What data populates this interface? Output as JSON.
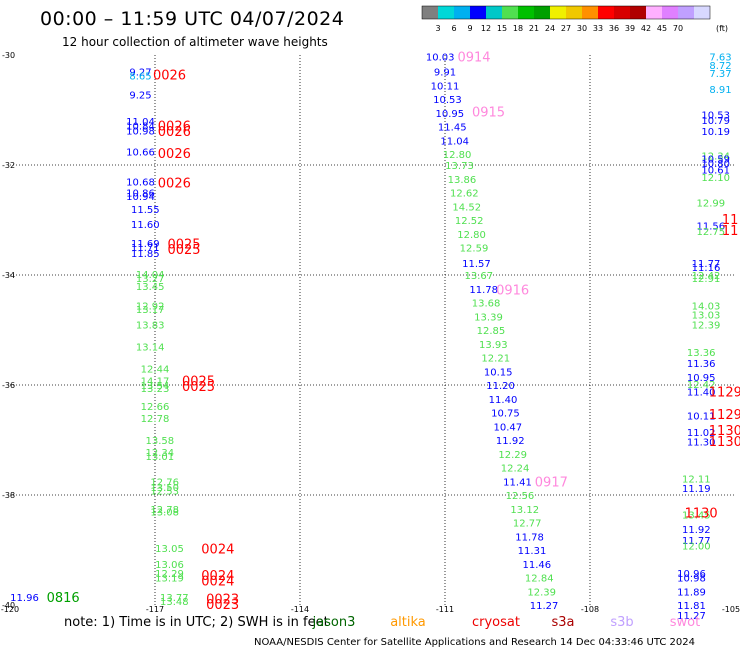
{
  "title": "00:00 – 11:59 UTC 04/07/2024",
  "subtitle": "12 hour collection of altimeter wave heights",
  "colorbar": {
    "unit": "(ft)",
    "colors": [
      "#7f7f7f",
      "#00d8d8",
      "#00b0f0",
      "#0000ff",
      "#00c8c8",
      "#50e050",
      "#00c000",
      "#00a000",
      "#f0f000",
      "#f0c800",
      "#ff9000",
      "#ff0000",
      "#d80000",
      "#b00000",
      "#ffb0ff",
      "#e080ff",
      "#c0a0ff",
      "#d8d8ff"
    ],
    "labels": [
      "3",
      "6",
      "9",
      "12",
      "15",
      "18",
      "21",
      "24",
      "27",
      "30",
      "33",
      "36",
      "39",
      "42",
      "45",
      "70"
    ]
  },
  "chart_data": {
    "type": "scatter",
    "xlim": [
      -120,
      -105
    ],
    "ylim": [
      -40,
      -30
    ],
    "x_ticks": [
      -120,
      -117,
      -114,
      -111,
      -108,
      -105
    ],
    "x_tick_labels": [
      "-120",
      "-117",
      "-114",
      "-111",
      "-108",
      "-105"
    ],
    "y_ticks": [
      -30,
      -32,
      -34,
      -36,
      -38,
      -40
    ],
    "y_tick_labels": [
      "-30",
      "-32",
      "-34",
      "-36",
      "-38",
      "-40"
    ],
    "grid": true,
    "points": [
      {
        "x": -117.3,
        "y": -30.3,
        "v": "9.27",
        "c": "#0000ff"
      },
      {
        "x": -117.3,
        "y": -30.37,
        "v": "8.65",
        "c": "#00b0f0"
      },
      {
        "x": -117.3,
        "y": -30.72,
        "v": "9.25",
        "c": "#0000ff"
      },
      {
        "x": -117.3,
        "y": -31.2,
        "v": "11.04",
        "c": "#0000ff"
      },
      {
        "x": -117.3,
        "y": -31.28,
        "v": "10.84",
        "c": "#0000ff"
      },
      {
        "x": -117.3,
        "y": -31.37,
        "v": "10.98",
        "c": "#0000ff"
      },
      {
        "x": -117.3,
        "y": -31.75,
        "v": "10.66",
        "c": "#0000ff"
      },
      {
        "x": -117.3,
        "y": -32.3,
        "v": "10.68",
        "c": "#0000ff"
      },
      {
        "x": -117.3,
        "y": -32.5,
        "v": "10.86",
        "c": "#0000ff"
      },
      {
        "x": -117.3,
        "y": -32.56,
        "v": "10.94",
        "c": "#0000ff"
      },
      {
        "x": -117.2,
        "y": -32.8,
        "v": "11.55",
        "c": "#0000ff"
      },
      {
        "x": -117.2,
        "y": -33.07,
        "v": "11.60",
        "c": "#0000ff"
      },
      {
        "x": -117.2,
        "y": -33.42,
        "v": "11.69",
        "c": "#0000ff"
      },
      {
        "x": -117.2,
        "y": -33.49,
        "v": "11.71",
        "c": "#0000ff"
      },
      {
        "x": -117.2,
        "y": -33.6,
        "v": "11.85",
        "c": "#0000ff"
      },
      {
        "x": -117.1,
        "y": -33.98,
        "v": "14.04",
        "c": "#50e050"
      },
      {
        "x": -117.1,
        "y": -34.05,
        "v": "13.27",
        "c": "#50e050"
      },
      {
        "x": -117.1,
        "y": -34.2,
        "v": "13.45",
        "c": "#50e050"
      },
      {
        "x": -117.1,
        "y": -34.55,
        "v": "12.92",
        "c": "#50e050"
      },
      {
        "x": -117.1,
        "y": -34.62,
        "v": "13.17",
        "c": "#50e050"
      },
      {
        "x": -117.1,
        "y": -34.9,
        "v": "13.83",
        "c": "#50e050"
      },
      {
        "x": -117.1,
        "y": -35.3,
        "v": "13.14",
        "c": "#50e050"
      },
      {
        "x": -117.0,
        "y": -35.7,
        "v": "12.44",
        "c": "#50e050"
      },
      {
        "x": -117.0,
        "y": -35.92,
        "v": "14.17",
        "c": "#50e050"
      },
      {
        "x": -117.0,
        "y": -36.0,
        "v": "13.54",
        "c": "#50e050"
      },
      {
        "x": -117.0,
        "y": -36.05,
        "v": "13.23",
        "c": "#50e050"
      },
      {
        "x": -117.0,
        "y": -36.38,
        "v": "12.66",
        "c": "#50e050"
      },
      {
        "x": -117.0,
        "y": -36.6,
        "v": "12.78",
        "c": "#50e050"
      },
      {
        "x": -116.9,
        "y": -37.0,
        "v": "13.58",
        "c": "#50e050"
      },
      {
        "x": -116.9,
        "y": -37.22,
        "v": "12.34",
        "c": "#50e050"
      },
      {
        "x": -116.9,
        "y": -37.29,
        "v": "13.01",
        "c": "#50e050"
      },
      {
        "x": -116.8,
        "y": -37.75,
        "v": "12.76",
        "c": "#50e050"
      },
      {
        "x": -116.8,
        "y": -37.85,
        "v": "13.50",
        "c": "#50e050"
      },
      {
        "x": -116.8,
        "y": -37.92,
        "v": "12.53",
        "c": "#50e050"
      },
      {
        "x": -116.8,
        "y": -38.25,
        "v": "12.78",
        "c": "#50e050"
      },
      {
        "x": -116.8,
        "y": -38.3,
        "v": "13.08",
        "c": "#50e050"
      },
      {
        "x": -116.7,
        "y": -38.96,
        "v": "13.05",
        "c": "#50e050"
      },
      {
        "x": -116.7,
        "y": -39.25,
        "v": "13.06",
        "c": "#50e050"
      },
      {
        "x": -116.7,
        "y": -39.42,
        "v": "12.29",
        "c": "#50e050"
      },
      {
        "x": -116.7,
        "y": -39.5,
        "v": "13.19",
        "c": "#50e050"
      },
      {
        "x": -116.6,
        "y": -39.85,
        "v": "13.77",
        "c": "#50e050"
      },
      {
        "x": -116.6,
        "y": -39.93,
        "v": "13.48",
        "c": "#50e050"
      },
      {
        "x": -119.7,
        "y": -39.85,
        "v": "11.96",
        "c": "#0000ff"
      },
      {
        "x": -111.1,
        "y": -30.03,
        "v": "10.03",
        "c": "#0000ff"
      },
      {
        "x": -111.0,
        "y": -30.3,
        "v": "9.91",
        "c": "#0000ff"
      },
      {
        "x": -111.0,
        "y": -30.55,
        "v": "10.11",
        "c": "#0000ff"
      },
      {
        "x": -110.95,
        "y": -30.8,
        "v": "10.53",
        "c": "#0000ff"
      },
      {
        "x": -110.9,
        "y": -31.05,
        "v": "10.95",
        "c": "#0000ff"
      },
      {
        "x": -110.85,
        "y": -31.3,
        "v": "11.45",
        "c": "#0000ff"
      },
      {
        "x": -110.8,
        "y": -31.55,
        "v": "11.04",
        "c": "#0000ff"
      },
      {
        "x": -110.75,
        "y": -31.8,
        "v": "12.80",
        "c": "#50e050"
      },
      {
        "x": -110.7,
        "y": -32.0,
        "v": "13.73",
        "c": "#50e050"
      },
      {
        "x": -110.65,
        "y": -32.25,
        "v": "13.86",
        "c": "#50e050"
      },
      {
        "x": -110.6,
        "y": -32.5,
        "v": "12.62",
        "c": "#50e050"
      },
      {
        "x": -110.55,
        "y": -32.75,
        "v": "14.52",
        "c": "#50e050"
      },
      {
        "x": -110.5,
        "y": -33.0,
        "v": "12.52",
        "c": "#50e050"
      },
      {
        "x": -110.45,
        "y": -33.25,
        "v": "12.80",
        "c": "#50e050"
      },
      {
        "x": -110.4,
        "y": -33.5,
        "v": "12.59",
        "c": "#50e050"
      },
      {
        "x": -110.35,
        "y": -33.78,
        "v": "11.57",
        "c": "#0000ff"
      },
      {
        "x": -110.3,
        "y": -34.0,
        "v": "13.67",
        "c": "#50e050"
      },
      {
        "x": -110.2,
        "y": -34.25,
        "v": "11.78",
        "c": "#0000ff"
      },
      {
        "x": -110.15,
        "y": -34.5,
        "v": "13.68",
        "c": "#50e050"
      },
      {
        "x": -110.1,
        "y": -34.75,
        "v": "13.39",
        "c": "#50e050"
      },
      {
        "x": -110.05,
        "y": -35.0,
        "v": "12.85",
        "c": "#50e050"
      },
      {
        "x": -110.0,
        "y": -35.25,
        "v": "13.93",
        "c": "#50e050"
      },
      {
        "x": -109.95,
        "y": -35.5,
        "v": "12.21",
        "c": "#50e050"
      },
      {
        "x": -109.9,
        "y": -35.75,
        "v": "10.15",
        "c": "#0000ff"
      },
      {
        "x": -109.85,
        "y": -36.0,
        "v": "11.20",
        "c": "#0000ff"
      },
      {
        "x": -109.8,
        "y": -36.25,
        "v": "11.40",
        "c": "#0000ff"
      },
      {
        "x": -109.75,
        "y": -36.5,
        "v": "10.75",
        "c": "#0000ff"
      },
      {
        "x": -109.7,
        "y": -36.75,
        "v": "10.47",
        "c": "#0000ff"
      },
      {
        "x": -109.65,
        "y": -37.0,
        "v": "11.92",
        "c": "#0000ff"
      },
      {
        "x": -109.6,
        "y": -37.25,
        "v": "12.29",
        "c": "#50e050"
      },
      {
        "x": -109.55,
        "y": -37.5,
        "v": "12.24",
        "c": "#50e050"
      },
      {
        "x": -109.5,
        "y": -37.75,
        "v": "11.41",
        "c": "#0000ff"
      },
      {
        "x": -109.45,
        "y": -38.0,
        "v": "12.56",
        "c": "#50e050"
      },
      {
        "x": -109.35,
        "y": -38.25,
        "v": "13.12",
        "c": "#50e050"
      },
      {
        "x": -109.3,
        "y": -38.5,
        "v": "12.77",
        "c": "#50e050"
      },
      {
        "x": -109.25,
        "y": -38.75,
        "v": "11.78",
        "c": "#0000ff"
      },
      {
        "x": -109.2,
        "y": -39.0,
        "v": "11.31",
        "c": "#0000ff"
      },
      {
        "x": -109.1,
        "y": -39.25,
        "v": "11.46",
        "c": "#0000ff"
      },
      {
        "x": -109.05,
        "y": -39.5,
        "v": "12.84",
        "c": "#50e050"
      },
      {
        "x": -109.0,
        "y": -39.75,
        "v": "12.39",
        "c": "#50e050"
      },
      {
        "x": -108.95,
        "y": -40.0,
        "v": "11.27",
        "c": "#0000ff"
      },
      {
        "x": -105.3,
        "y": -30.03,
        "v": "7.63",
        "c": "#00b0f0"
      },
      {
        "x": -105.3,
        "y": -30.18,
        "v": "8.72",
        "c": "#00b0f0"
      },
      {
        "x": -105.3,
        "y": -30.33,
        "v": "7.37",
        "c": "#00b0f0"
      },
      {
        "x": -105.3,
        "y": -30.62,
        "v": "8.91",
        "c": "#00b0f0"
      },
      {
        "x": -105.4,
        "y": -31.08,
        "v": "10.53",
        "c": "#0000ff"
      },
      {
        "x": -105.4,
        "y": -31.18,
        "v": "10.79",
        "c": "#0000ff"
      },
      {
        "x": -105.4,
        "y": -31.38,
        "v": "10.19",
        "c": "#0000ff"
      },
      {
        "x": -105.4,
        "y": -31.83,
        "v": "12.34",
        "c": "#50e050"
      },
      {
        "x": -105.4,
        "y": -31.88,
        "v": "10.59",
        "c": "#0000ff"
      },
      {
        "x": -105.4,
        "y": -31.96,
        "v": "10.80",
        "c": "#0000ff"
      },
      {
        "x": -105.4,
        "y": -32.08,
        "v": "10.61",
        "c": "#0000ff"
      },
      {
        "x": -105.4,
        "y": -32.22,
        "v": "12.10",
        "c": "#50e050"
      },
      {
        "x": -105.5,
        "y": -32.68,
        "v": "12.99",
        "c": "#50e050"
      },
      {
        "x": -105.5,
        "y": -33.1,
        "v": "11.56",
        "c": "#0000ff"
      },
      {
        "x": -105.5,
        "y": -33.2,
        "v": "12.75",
        "c": "#50e050"
      },
      {
        "x": -105.6,
        "y": -33.78,
        "v": "11.77",
        "c": "#0000ff"
      },
      {
        "x": -105.6,
        "y": -33.85,
        "v": "11.16",
        "c": "#0000ff"
      },
      {
        "x": -105.6,
        "y": -34.0,
        "v": "12.42",
        "c": "#50e050"
      },
      {
        "x": -105.6,
        "y": -34.05,
        "v": "12.91",
        "c": "#50e050"
      },
      {
        "x": -105.6,
        "y": -34.55,
        "v": "14.03",
        "c": "#50e050"
      },
      {
        "x": -105.6,
        "y": -34.72,
        "v": "13.03",
        "c": "#50e050"
      },
      {
        "x": -105.6,
        "y": -34.9,
        "v": "12.39",
        "c": "#50e050"
      },
      {
        "x": -105.7,
        "y": -35.4,
        "v": "13.36",
        "c": "#50e050"
      },
      {
        "x": -105.7,
        "y": -35.6,
        "v": "11.36",
        "c": "#0000ff"
      },
      {
        "x": -105.7,
        "y": -35.85,
        "v": "10.95",
        "c": "#0000ff"
      },
      {
        "x": -105.7,
        "y": -35.98,
        "v": "12.42",
        "c": "#50e050"
      },
      {
        "x": -105.7,
        "y": -36.12,
        "v": "11.40",
        "c": "#0000ff"
      },
      {
        "x": -105.7,
        "y": -36.55,
        "v": "10.11",
        "c": "#0000ff"
      },
      {
        "x": -105.7,
        "y": -36.85,
        "v": "11.02",
        "c": "#0000ff"
      },
      {
        "x": -105.7,
        "y": -37.03,
        "v": "11.30",
        "c": "#0000ff"
      },
      {
        "x": -105.8,
        "y": -37.7,
        "v": "12.11",
        "c": "#50e050"
      },
      {
        "x": -105.8,
        "y": -37.87,
        "v": "11.19",
        "c": "#0000ff"
      },
      {
        "x": -105.8,
        "y": -38.35,
        "v": "13.45",
        "c": "#50e050"
      },
      {
        "x": -105.8,
        "y": -38.62,
        "v": "11.92",
        "c": "#0000ff"
      },
      {
        "x": -105.8,
        "y": -38.82,
        "v": "11.77",
        "c": "#0000ff"
      },
      {
        "x": -105.8,
        "y": -38.92,
        "v": "12.00",
        "c": "#50e050"
      },
      {
        "x": -105.9,
        "y": -39.42,
        "v": "10.96",
        "c": "#0000ff"
      },
      {
        "x": -105.9,
        "y": -39.5,
        "v": "10.98",
        "c": "#0000ff"
      },
      {
        "x": -105.9,
        "y": -39.75,
        "v": "11.89",
        "c": "#0000ff"
      },
      {
        "x": -105.9,
        "y": -40.0,
        "v": "11.81",
        "c": "#0000ff"
      },
      {
        "x": -105.9,
        "y": -40.18,
        "v": "11.27",
        "c": "#0000ff"
      }
    ],
    "pass_labels": [
      {
        "x": -116.7,
        "y": -30.35,
        "v": "0026",
        "c": "#ff0000"
      },
      {
        "x": -116.6,
        "y": -31.28,
        "v": "0026",
        "c": "#ff0000"
      },
      {
        "x": -116.6,
        "y": -31.38,
        "v": "0026",
        "c": "#ff0000"
      },
      {
        "x": -116.6,
        "y": -31.78,
        "v": "0026",
        "c": "#ff0000"
      },
      {
        "x": -116.6,
        "y": -32.32,
        "v": "0026",
        "c": "#ff0000"
      },
      {
        "x": -116.4,
        "y": -33.43,
        "v": "0025",
        "c": "#ff0000"
      },
      {
        "x": -116.4,
        "y": -33.53,
        "v": "0025",
        "c": "#ff0000"
      },
      {
        "x": -116.1,
        "y": -35.92,
        "v": "0025",
        "c": "#ff0000"
      },
      {
        "x": -116.1,
        "y": -36.02,
        "v": "0025",
        "c": "#ff0000"
      },
      {
        "x": -115.7,
        "y": -38.97,
        "v": "0024",
        "c": "#ff0000"
      },
      {
        "x": -115.7,
        "y": -39.45,
        "v": "0024",
        "c": "#ff0000"
      },
      {
        "x": -115.7,
        "y": -39.55,
        "v": "0024",
        "c": "#ff0000"
      },
      {
        "x": -115.6,
        "y": -39.88,
        "v": "0023",
        "c": "#ff0000"
      },
      {
        "x": -115.6,
        "y": -39.98,
        "v": "0023",
        "c": "#ff0000"
      },
      {
        "x": -118.9,
        "y": -39.85,
        "v": "0816",
        "c": "#00a000"
      },
      {
        "x": -110.4,
        "y": -30.03,
        "v": "0914",
        "c": "#ff88dd"
      },
      {
        "x": -110.1,
        "y": -31.03,
        "v": "0915",
        "c": "#ff88dd"
      },
      {
        "x": -109.6,
        "y": -34.26,
        "v": "0916",
        "c": "#ff88dd"
      },
      {
        "x": -108.8,
        "y": -37.75,
        "v": "0917",
        "c": "#ff88dd"
      },
      {
        "x": -105.1,
        "y": -32.98,
        "v": "11",
        "c": "#ff0000"
      },
      {
        "x": -105.1,
        "y": -33.18,
        "v": "11",
        "c": "#ff0000"
      },
      {
        "x": -105.2,
        "y": -36.12,
        "v": "1129",
        "c": "#ff0000"
      },
      {
        "x": -105.2,
        "y": -36.53,
        "v": "1129",
        "c": "#ff0000"
      },
      {
        "x": -105.2,
        "y": -36.82,
        "v": "1130",
        "c": "#ff0000"
      },
      {
        "x": -105.2,
        "y": -37.02,
        "v": "1130",
        "c": "#ff0000"
      },
      {
        "x": -105.7,
        "y": -38.32,
        "v": "1130",
        "c": "#ff0000"
      }
    ]
  },
  "footer": {
    "note": "note:  1) Time is in UTC;  2) SWH is in feet",
    "legend": [
      {
        "name": "jason3",
        "c": "#006400"
      },
      {
        "name": "altika",
        "c": "#ff9900"
      },
      {
        "name": "cryosat",
        "c": "#ee0000"
      },
      {
        "name": "s3a",
        "c": "#aa0000"
      },
      {
        "name": "s3b",
        "c": "#c0a0ff"
      },
      {
        "name": "swot",
        "c": "#ff88dd"
      }
    ],
    "credit": "NOAA/NESDIS Center for Satellite Applications and Research    14 Dec 04:33:46 UTC 2024"
  }
}
